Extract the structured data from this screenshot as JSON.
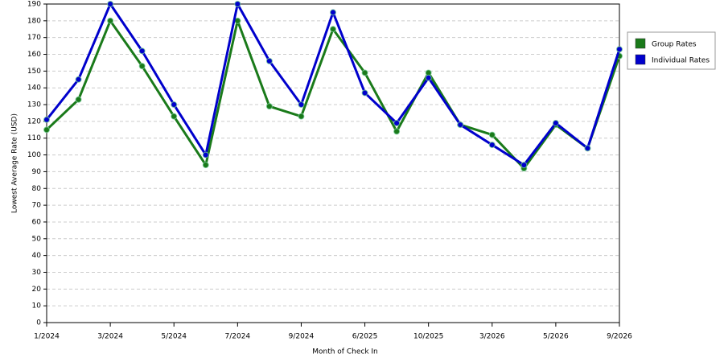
{
  "chart_data": {
    "type": "line",
    "x_label": "Month of Check In",
    "y_label": "Lowest Average Rate (USD)",
    "categories": [
      "1/2024",
      null,
      "3/2024",
      null,
      "5/2024",
      null,
      "7/2024",
      null,
      "9/2024",
      null,
      "6/2025",
      null,
      "10/2025",
      null,
      "3/2026",
      null,
      "5/2026",
      null,
      "9/2026"
    ],
    "series": [
      {
        "name": "Group Rates",
        "color": "#1a7a1a",
        "values": [
          115,
          133,
          180,
          153,
          123,
          94,
          180,
          129,
          123,
          175,
          149,
          114,
          149,
          118,
          112,
          92,
          118,
          104,
          159
        ]
      },
      {
        "name": "Individual Rates",
        "color": "#0000cc",
        "values": [
          121,
          145,
          190,
          162,
          130,
          100,
          190,
          156,
          130,
          185,
          137,
          119,
          146,
          118,
          106,
          94,
          119,
          104,
          163
        ]
      }
    ],
    "ylim": [
      0,
      190
    ],
    "yticks": [
      0,
      10,
      20,
      30,
      40,
      50,
      60,
      70,
      80,
      90,
      100,
      110,
      120,
      130,
      140,
      150,
      160,
      170,
      180,
      190
    ],
    "grid": true,
    "legend": "right"
  }
}
